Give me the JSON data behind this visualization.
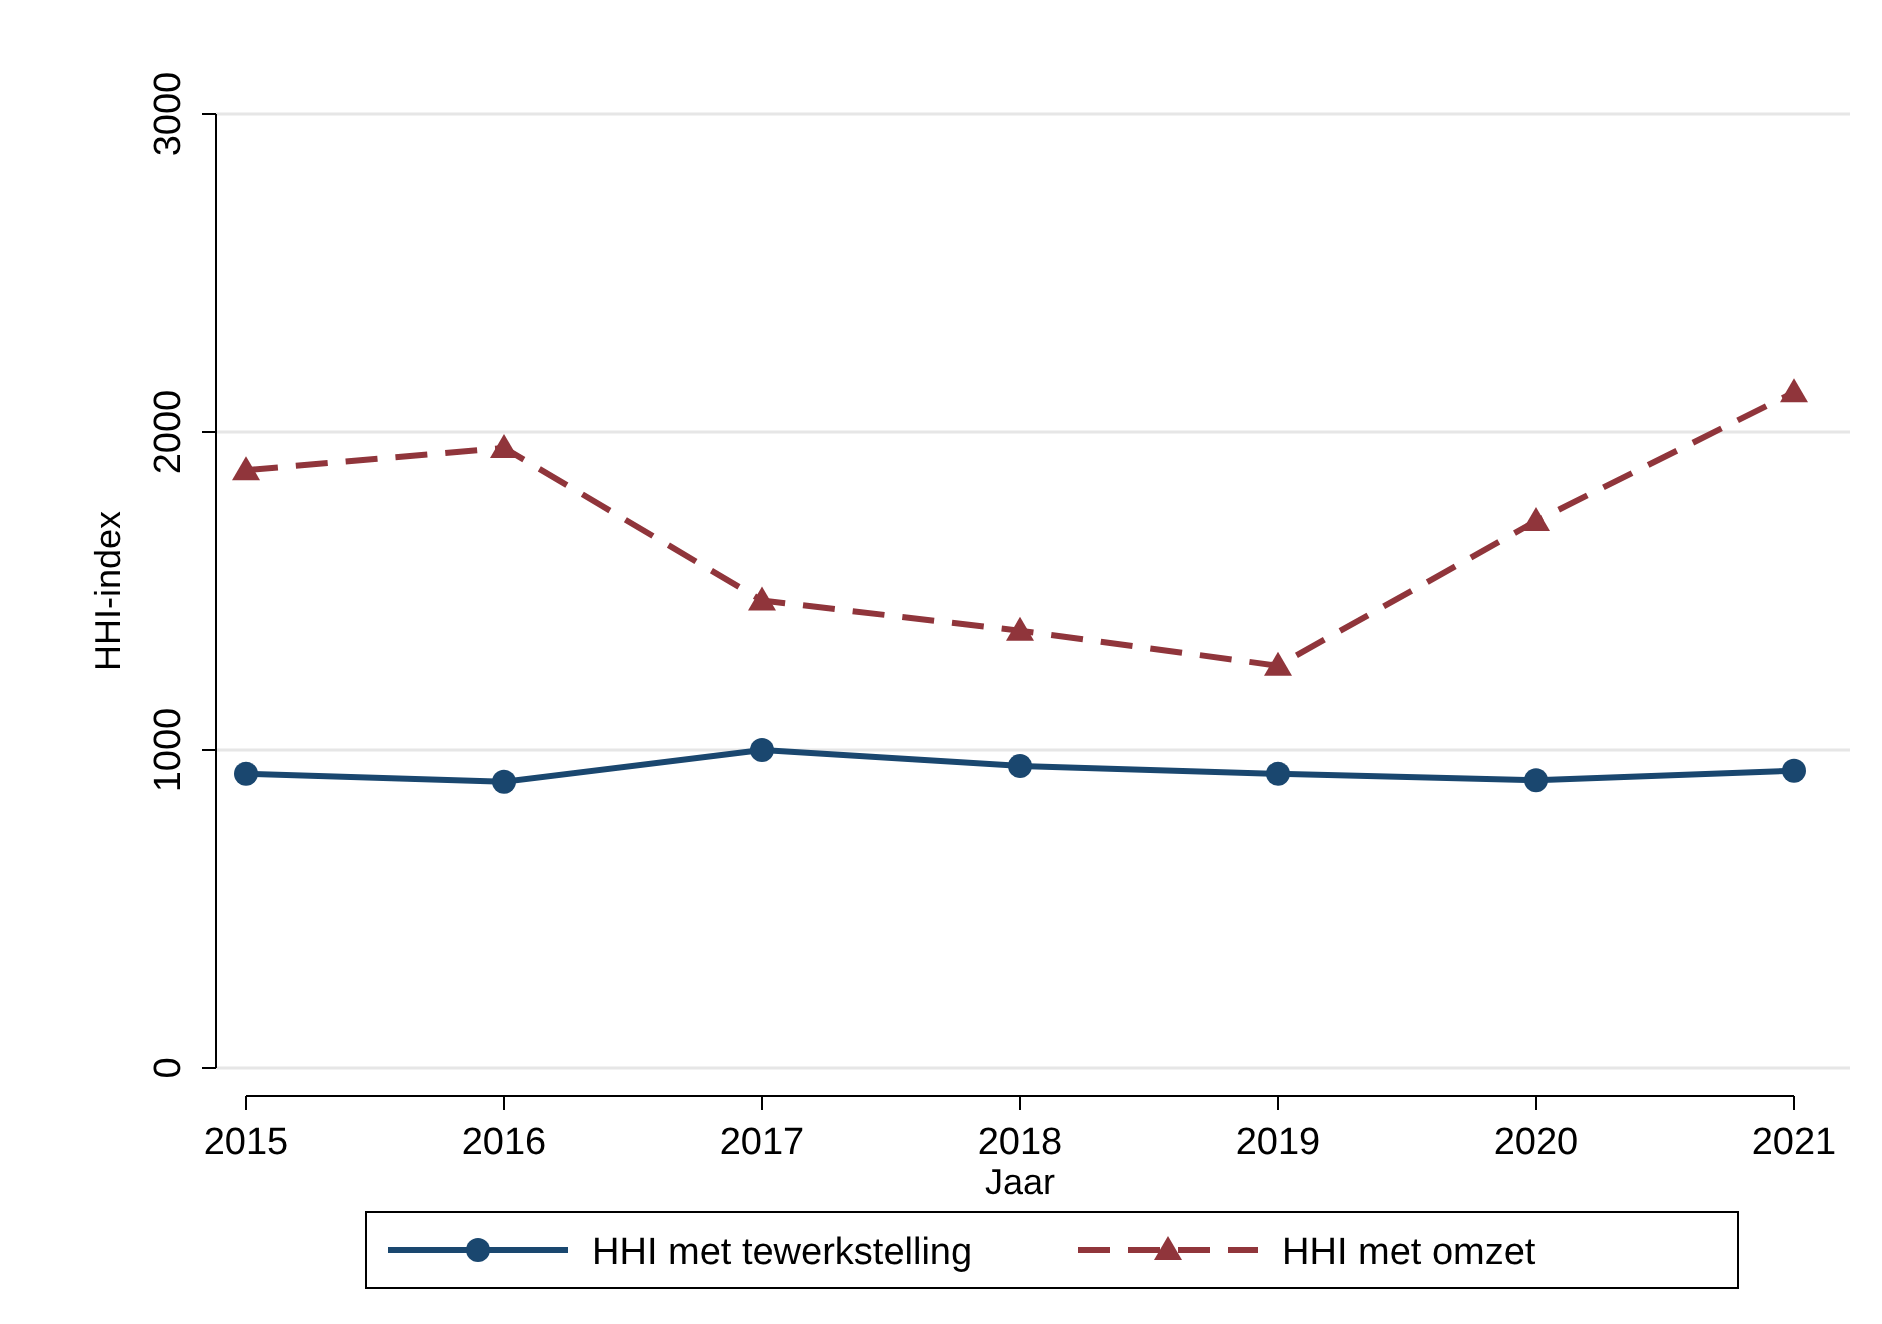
{
  "chart_data": {
    "type": "line",
    "xlabel": "Jaar",
    "ylabel": "HHI-index",
    "x": [
      2015,
      2016,
      2017,
      2018,
      2019,
      2020,
      2021
    ],
    "xlim": [
      2015,
      2021
    ],
    "xticks": [
      2015,
      2016,
      2017,
      2018,
      2019,
      2020,
      2021
    ],
    "ylim": [
      0,
      3000
    ],
    "yticks": [
      0,
      1000,
      2000,
      3000
    ],
    "grid": "y",
    "legend": "bottom",
    "series": [
      {
        "name": "HHI met tewerkstelling",
        "color": "#1a476f",
        "marker": "circle",
        "line_style": "solid",
        "values": [
          925,
          900,
          1000,
          950,
          925,
          905,
          935
        ]
      },
      {
        "name": "HHI met omzet",
        "color": "#90353b",
        "marker": "triangle",
        "line_style": "dashed",
        "values": [
          1880,
          1950,
          1470,
          1375,
          1265,
          1720,
          2125
        ]
      }
    ]
  }
}
